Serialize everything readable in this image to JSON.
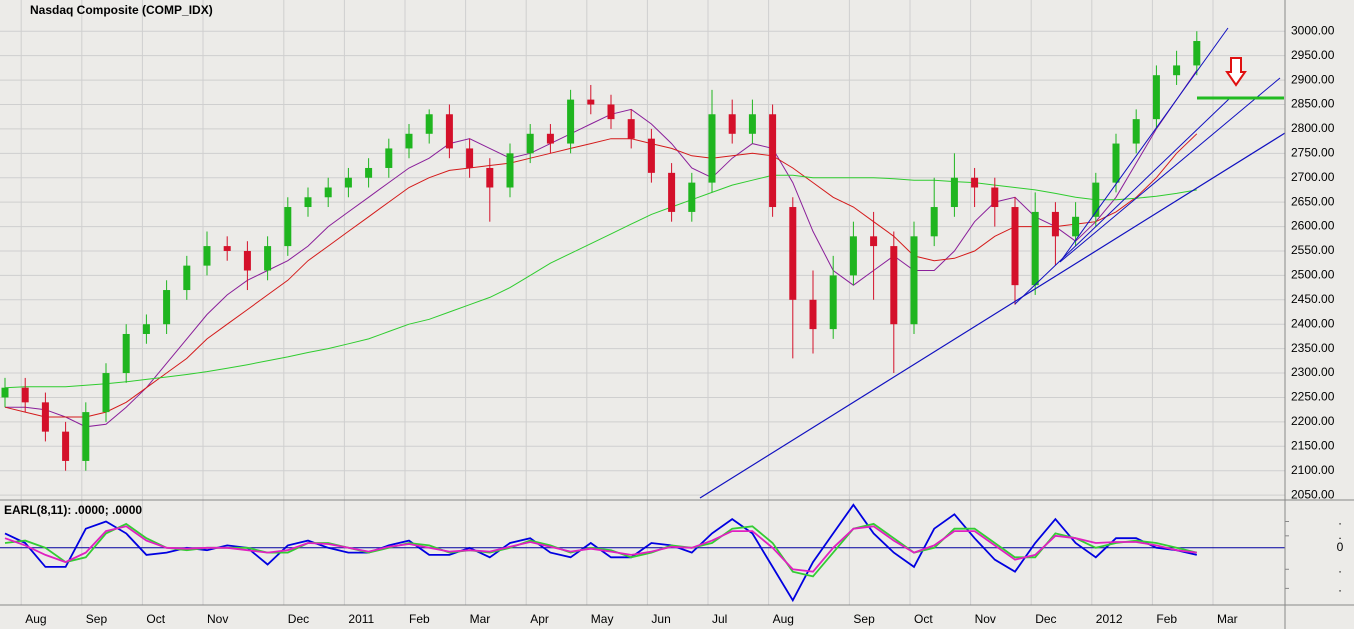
{
  "chart_data": [
    {
      "type": "candlestick",
      "title": "Nasdaq Composite (COMP_IDX)",
      "categories": [
        null,
        "Aug",
        null,
        null,
        "Sep",
        null,
        null,
        "Oct",
        null,
        null,
        "Nov",
        null,
        null,
        null,
        "Dec",
        null,
        null,
        "2011",
        null,
        null,
        "Feb",
        null,
        null,
        "Mar",
        null,
        null,
        "Apr",
        null,
        null,
        "May",
        null,
        null,
        "Jun",
        null,
        null,
        "Jul",
        null,
        null,
        "Aug",
        null,
        null,
        null,
        "Sep",
        null,
        null,
        "Oct",
        null,
        null,
        "Nov",
        null,
        null,
        "Dec",
        null,
        null,
        "2012",
        null,
        null,
        "Feb",
        null,
        null,
        "Mar"
      ],
      "open": [
        2250,
        2270,
        2240,
        2180,
        2120,
        2220,
        2300,
        2380,
        2400,
        2470,
        2520,
        2560,
        2550,
        2510,
        2560,
        2640,
        2660,
        2680,
        2700,
        2720,
        2760,
        2790,
        2830,
        2760,
        2720,
        2680,
        2750,
        2790,
        2770,
        2860,
        2850,
        2820,
        2780,
        2710,
        2630,
        2690,
        2830,
        2790,
        2830,
        2640,
        2450,
        2390,
        2500,
        2580,
        2560,
        2400,
        2580,
        2640,
        2700,
        2680,
        2640,
        2480,
        2630,
        2580,
        2620,
        2690,
        2770,
        2820,
        2910,
        2930,
        null
      ],
      "high": [
        2290,
        2290,
        2260,
        2200,
        2240,
        2320,
        2400,
        2420,
        2490,
        2540,
        2590,
        2580,
        2570,
        2580,
        2660,
        2680,
        2700,
        2720,
        2740,
        2780,
        2810,
        2840,
        2850,
        2780,
        2740,
        2770,
        2810,
        2810,
        2880,
        2890,
        2870,
        2840,
        2800,
        2730,
        2710,
        2880,
        2860,
        2860,
        2850,
        2660,
        2510,
        2540,
        2610,
        2630,
        2590,
        2610,
        2700,
        2750,
        2720,
        2700,
        2660,
        2670,
        2650,
        2650,
        2710,
        2790,
        2840,
        2930,
        2960,
        3000,
        null
      ],
      "low": [
        2230,
        2220,
        2160,
        2100,
        2100,
        2200,
        2280,
        2360,
        2380,
        2450,
        2500,
        2530,
        2470,
        2490,
        2540,
        2620,
        2640,
        2660,
        2680,
        2700,
        2740,
        2770,
        2740,
        2700,
        2610,
        2660,
        2730,
        2750,
        2750,
        2830,
        2800,
        2760,
        2690,
        2610,
        2610,
        2670,
        2770,
        2770,
        2620,
        2330,
        2340,
        2370,
        2480,
        2450,
        2300,
        2380,
        2560,
        2620,
        2640,
        2600,
        2440,
        2460,
        2520,
        2560,
        2600,
        2670,
        2750,
        2800,
        2890,
        2910,
        null
      ],
      "close": [
        2270,
        2240,
        2180,
        2120,
        2220,
        2300,
        2380,
        2400,
        2470,
        2520,
        2560,
        2550,
        2510,
        2560,
        2640,
        2660,
        2680,
        2700,
        2720,
        2760,
        2790,
        2830,
        2760,
        2720,
        2680,
        2750,
        2790,
        2770,
        2860,
        2850,
        2820,
        2780,
        2710,
        2630,
        2690,
        2830,
        2790,
        2830,
        2640,
        2450,
        2390,
        2500,
        2580,
        2560,
        2400,
        2580,
        2640,
        2700,
        2680,
        2640,
        2480,
        2630,
        2580,
        2620,
        2690,
        2770,
        2820,
        2910,
        2930,
        2980,
        null
      ],
      "up_color": "#1fb51f",
      "down_color": "#d4102a",
      "moving_averages": [
        {
          "color": "#8a1f9a",
          "values": [
            2230,
            2230,
            2225,
            2210,
            2190,
            2195,
            2230,
            2270,
            2320,
            2370,
            2420,
            2460,
            2490,
            2510,
            2530,
            2560,
            2600,
            2630,
            2660,
            2690,
            2720,
            2740,
            2770,
            2780,
            2760,
            2740,
            2750,
            2770,
            2790,
            2810,
            2830,
            2840,
            2810,
            2770,
            2720,
            2700,
            2740,
            2770,
            2760,
            2690,
            2590,
            2510,
            2480,
            2510,
            2540,
            2510,
            2510,
            2550,
            2610,
            2650,
            2660,
            2620,
            2600,
            2570,
            2610,
            2660,
            2730,
            2800,
            2860,
            2920,
            null
          ]
        },
        {
          "color": "#d41a1a",
          "values": [
            2230,
            2220,
            2210,
            2210,
            2210,
            2220,
            2240,
            2270,
            2300,
            2330,
            2370,
            2400,
            2430,
            2460,
            2490,
            2530,
            2560,
            2590,
            2620,
            2650,
            2680,
            2700,
            2715,
            2720,
            2725,
            2730,
            2740,
            2750,
            2760,
            2770,
            2780,
            2780,
            2770,
            2760,
            2745,
            2740,
            2745,
            2750,
            2745,
            2720,
            2690,
            2660,
            2640,
            2610,
            2580,
            2540,
            2530,
            2535,
            2550,
            2580,
            2600,
            2600,
            2600,
            2605,
            2610,
            2630,
            2660,
            2700,
            2750,
            2790,
            null
          ]
        },
        {
          "color": "#2fcc2f",
          "values": [
            2270,
            2272,
            2272,
            2272,
            2275,
            2278,
            2282,
            2287,
            2292,
            2297,
            2303,
            2310,
            2317,
            2325,
            2333,
            2342,
            2350,
            2360,
            2370,
            2385,
            2400,
            2410,
            2425,
            2440,
            2455,
            2475,
            2500,
            2525,
            2545,
            2565,
            2585,
            2605,
            2625,
            2640,
            2655,
            2670,
            2685,
            2695,
            2705,
            2705,
            2700,
            2700,
            2700,
            2700,
            2698,
            2695,
            2695,
            2692,
            2690,
            2685,
            2680,
            2675,
            2668,
            2660,
            2655,
            2655,
            2658,
            2662,
            2668,
            2675,
            null
          ]
        }
      ],
      "ylim": [
        2040,
        3064
      ],
      "yticks": [
        {
          "value": 2050,
          "label": "2050.00"
        },
        {
          "value": 2100,
          "label": "2100.00"
        },
        {
          "value": 2150,
          "label": "2150.00"
        },
        {
          "value": 2200,
          "label": "2200.00"
        },
        {
          "value": 2250,
          "label": "2250.00"
        },
        {
          "value": 2300,
          "label": "2300.00"
        },
        {
          "value": 2350,
          "label": "2350.00"
        },
        {
          "value": 2400,
          "label": "2400.00"
        },
        {
          "value": 2450,
          "label": "2450.00"
        },
        {
          "value": 2500,
          "label": "2500.00"
        },
        {
          "value": 2550,
          "label": "2550.00"
        },
        {
          "value": 2600,
          "label": "2600.00"
        },
        {
          "value": 2650,
          "label": "2650.00"
        },
        {
          "value": 2700,
          "label": "2700.00"
        },
        {
          "value": 2750,
          "label": "2750.00"
        },
        {
          "value": 2800,
          "label": "2800.00"
        },
        {
          "value": 2850,
          "label": "2850.00"
        },
        {
          "value": 2900,
          "label": "2900.00"
        },
        {
          "value": 2950,
          "label": "2950.00"
        },
        {
          "value": 3000,
          "label": "3000.00"
        }
      ],
      "grid": true
    },
    {
      "type": "line",
      "title": "EARL(8,11): .0000; .0000",
      "series": [
        {
          "color": "#0000e0",
          "values": [
            0.3,
            0.1,
            -0.4,
            -0.4,
            0.4,
            0.55,
            0.3,
            -0.15,
            -0.1,
            0.0,
            -0.05,
            0.05,
            0.0,
            -0.35,
            0.05,
            0.15,
            0.0,
            -0.1,
            -0.1,
            0.05,
            0.15,
            -0.15,
            -0.15,
            0.0,
            -0.2,
            0.1,
            0.2,
            -0.1,
            -0.2,
            0.1,
            -0.2,
            -0.2,
            0.1,
            0.05,
            -0.1,
            0.3,
            0.6,
            0.3,
            -0.4,
            -1.1,
            -0.3,
            0.3,
            0.9,
            0.3,
            -0.1,
            -0.4,
            0.4,
            0.7,
            0.2,
            -0.25,
            -0.5,
            0.1,
            0.6,
            0.1,
            -0.2,
            0.2,
            0.2,
            0.0,
            -0.05,
            -0.15,
            null
          ]
        },
        {
          "color": "#33cc33",
          "values": [
            0.1,
            0.15,
            0.0,
            -0.3,
            -0.2,
            0.3,
            0.5,
            0.2,
            0.0,
            -0.05,
            0.0,
            0.0,
            0.0,
            -0.1,
            -0.1,
            0.1,
            0.1,
            0.0,
            -0.1,
            0.0,
            0.1,
            0.05,
            -0.1,
            -0.05,
            -0.1,
            0.0,
            0.15,
            0.05,
            -0.1,
            0.0,
            -0.05,
            -0.2,
            -0.1,
            0.05,
            0.0,
            0.1,
            0.4,
            0.45,
            0.1,
            -0.5,
            -0.6,
            -0.1,
            0.4,
            0.5,
            0.2,
            -0.1,
            0.0,
            0.4,
            0.4,
            0.1,
            -0.2,
            -0.2,
            0.3,
            0.2,
            0.0,
            0.1,
            0.15,
            0.1,
            0.0,
            -0.1,
            null
          ]
        },
        {
          "color": "#e020c0",
          "values": [
            0.2,
            0.05,
            -0.15,
            -0.3,
            -0.1,
            0.35,
            0.45,
            0.15,
            0.0,
            -0.02,
            0.0,
            0.0,
            -0.05,
            -0.1,
            -0.05,
            0.1,
            0.08,
            0.0,
            -0.08,
            0.02,
            0.08,
            0.0,
            -0.08,
            -0.05,
            -0.08,
            0.02,
            0.12,
            0.02,
            -0.08,
            -0.02,
            -0.08,
            -0.15,
            -0.08,
            0.02,
            0.0,
            0.15,
            0.35,
            0.35,
            0.0,
            -0.45,
            -0.5,
            0.0,
            0.4,
            0.45,
            0.15,
            -0.1,
            0.05,
            0.35,
            0.35,
            0.05,
            -0.25,
            -0.15,
            0.25,
            0.2,
            0.1,
            0.12,
            0.12,
            0.05,
            -0.05,
            -0.1,
            null
          ]
        }
      ],
      "ylim": [
        -1.7,
        1.0
      ],
      "yticks": [
        {
          "value": 0.55,
          "label": "."
        },
        {
          "value": 0.25,
          "label": "."
        },
        0,
        {
          "value": -0.45,
          "label": "."
        },
        {
          "value": -0.85,
          "label": "."
        }
      ],
      "zero_color": "#0000a0"
    }
  ]
}
